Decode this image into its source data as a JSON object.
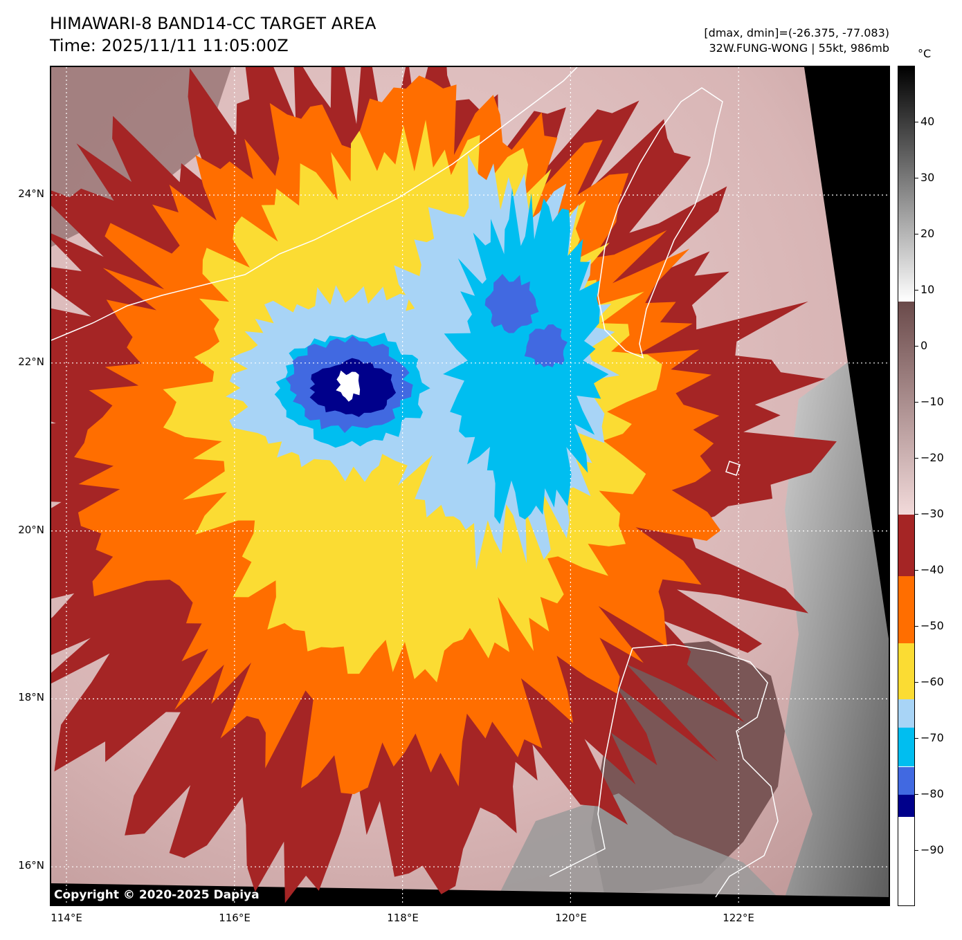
{
  "header": {
    "title_line1": "HIMAWARI-8 BAND14-CC TARGET AREA",
    "title_line2": "Time: 2025/11/11 11:05:00Z",
    "range_text": "[dmax, dmin]=(-26.375, -77.083)",
    "storm_text": "32W.FUNG-WONG | 55kt, 986mb"
  },
  "map": {
    "lat_labels": [
      "24°N",
      "22°N",
      "20°N",
      "18°N",
      "16°N"
    ],
    "lon_labels": [
      "114°E",
      "116°E",
      "118°E",
      "120°E",
      "122°E"
    ],
    "storm_center": {
      "lat": 21.7,
      "lon": 117.4
    },
    "copyright": "Copyright © 2020-2025 Dapiya",
    "colors": {
      "warm_cloud": "#eacfcf",
      "land_clear": "#7a5656",
      "cb_-30": "#a52525",
      "cb_-40": "#ff6e00",
      "cb_-50": "#fbdc33",
      "cb_-60": "#a8d4f6",
      "cb_-65": "#00bef0",
      "cb_-70": "#4169e1",
      "cb_-80": "#00008b",
      "cb_-90": "#ffffff",
      "coast": "#ffffff"
    }
  },
  "colorbar": {
    "unit": "°C",
    "ticks": [
      "40",
      "30",
      "20",
      "10",
      "0",
      "−10",
      "−20",
      "−30",
      "−40",
      "−50",
      "−60",
      "−70",
      "−80",
      "−90"
    ],
    "bands": [
      {
        "from": 50,
        "to": 8,
        "type": "gray"
      },
      {
        "from": 8,
        "to": -30,
        "type": "brown"
      },
      {
        "from": -30,
        "to": -41,
        "color": "#a52525"
      },
      {
        "from": -41,
        "to": -53,
        "color": "#ff6e00"
      },
      {
        "from": -53,
        "to": -63,
        "color": "#fbdc33"
      },
      {
        "from": -63,
        "to": -68,
        "color": "#a8d4f6"
      },
      {
        "from": -68,
        "to": -75,
        "color": "#00bef0"
      },
      {
        "from": -75,
        "to": -80,
        "color": "#4169e1"
      },
      {
        "from": -80,
        "to": -84,
        "color": "#00008b"
      },
      {
        "from": -84,
        "to": -100,
        "color": "#ffffff"
      }
    ]
  }
}
